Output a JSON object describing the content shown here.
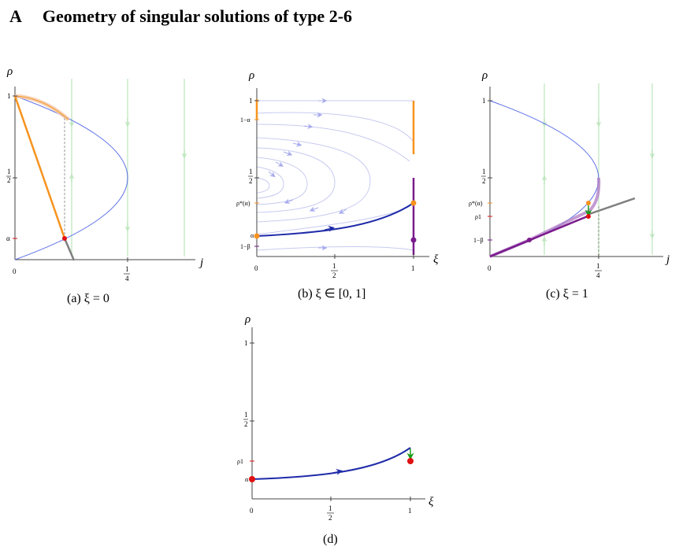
{
  "section": {
    "letter": "A",
    "title": "Geometry of singular solutions of type 2-6"
  },
  "colors": {
    "parabola": "#5a6ee8",
    "orange": "#f7931e",
    "purple": "#7a1a8c",
    "navy": "#1e2aa8",
    "lavender": "#b8bcec",
    "green_faint": "#cdeccd",
    "green": "#1a9a1a",
    "red": "#e01010",
    "gray": "#808080"
  },
  "panels": {
    "a": {
      "caption": "(a) ξ = 0",
      "x_axis": "j",
      "y_axis": "ρ",
      "y_ticks": [
        "1",
        "1",
        "2",
        "α"
      ],
      "x_ticks": [
        "0",
        "1",
        "4"
      ]
    },
    "b": {
      "caption": "(b) ξ ∈ [0, 1]",
      "x_axis": "ξ",
      "y_axis": "ρ",
      "y_ticks": [
        "1",
        "1−α",
        "1",
        "2",
        "ρ*(α)",
        "α",
        "1−β"
      ],
      "x_ticks": [
        "0",
        "1",
        "2",
        "1"
      ]
    },
    "c": {
      "caption": "(c) ξ = 1",
      "x_axis": "j",
      "y_axis": "ρ",
      "y_ticks": [
        "1",
        "1",
        "2",
        "ρ*(α)",
        "ρ1",
        "1−β"
      ],
      "x_ticks": [
        "0",
        "1",
        "4"
      ]
    },
    "d": {
      "caption": "(d)",
      "x_axis": "ξ",
      "y_axis": "ρ",
      "y_ticks": [
        "1",
        "1",
        "2",
        "ρ1",
        "α"
      ],
      "x_ticks": [
        "0",
        "1",
        "2",
        "1"
      ]
    }
  }
}
